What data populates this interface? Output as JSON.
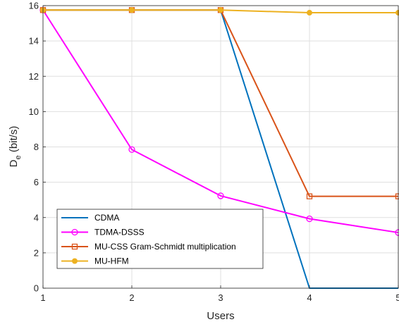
{
  "chart_data": {
    "type": "line",
    "title": "",
    "xlabel": "Users",
    "ylabel": {
      "main": "D",
      "sub": "e",
      "unit": " (bit/s)"
    },
    "x": [
      1,
      2,
      3,
      4,
      5
    ],
    "xlim": [
      1,
      5
    ],
    "ylim": [
      0,
      16
    ],
    "xticks": [
      "1",
      "2",
      "3",
      "4",
      "5"
    ],
    "yticks": [
      "0",
      "2",
      "4",
      "6",
      "8",
      "10",
      "12",
      "14",
      "16"
    ],
    "grid": true,
    "legend_position": "bottom-left",
    "series": [
      {
        "name": "CDMA",
        "color": "#0072BD",
        "marker": "none",
        "values": [
          15.75,
          15.75,
          15.75,
          0,
          0
        ]
      },
      {
        "name": "TDMA-DSSS",
        "color": "#FF00FF",
        "marker": "circle",
        "values": [
          15.75,
          7.85,
          5.23,
          3.93,
          3.15
        ]
      },
      {
        "name": "MU-CSS Gram-Schmidt multiplication",
        "color": "#D95319",
        "marker": "square",
        "values": [
          15.75,
          15.75,
          15.75,
          5.2,
          5.2
        ]
      },
      {
        "name": "MU-HFM",
        "color": "#EDB120",
        "marker": "filled-circle",
        "values": [
          15.75,
          15.75,
          15.75,
          15.6,
          15.6
        ]
      }
    ]
  }
}
